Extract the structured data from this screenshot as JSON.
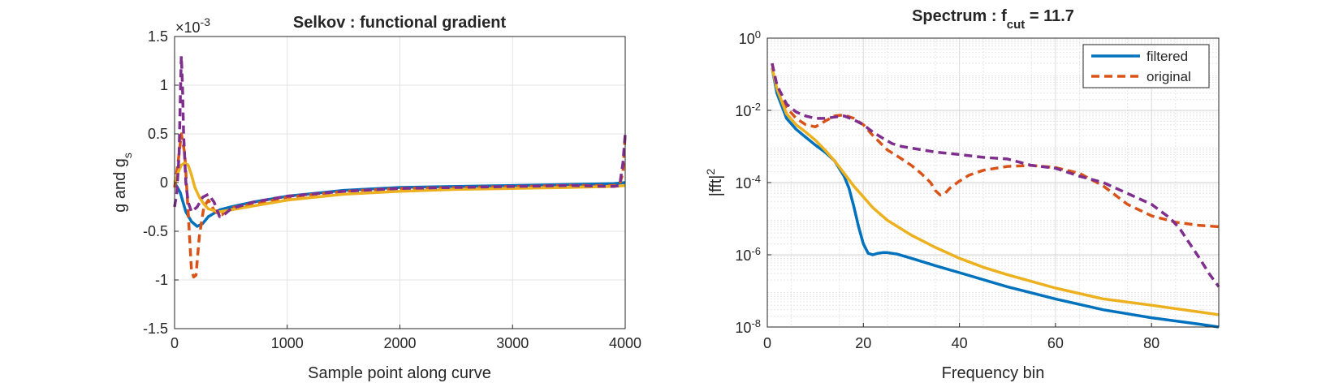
{
  "chart_data": [
    {
      "type": "line",
      "title": "Selkov : functional gradient",
      "xlabel": "Sample point along curve",
      "ylabel_main": "g and g",
      "ylabel_sub": "s",
      "exponent_base": "×10",
      "exponent_power": "-3",
      "xlim": [
        0,
        4000
      ],
      "ylim": [
        -1.5,
        1.5
      ],
      "xticks": [
        "0",
        "1000",
        "2000",
        "3000",
        "4000"
      ],
      "yticks": [
        "-1.5",
        "-1",
        "-0.5",
        "0",
        "0.5",
        "1",
        "1.5"
      ],
      "grid": true,
      "series": [
        {
          "color": "#0072BD",
          "style": "solid",
          "x": [
            0,
            50,
            100,
            150,
            200,
            250,
            300,
            400,
            500,
            700,
            1000,
            1500,
            2000,
            2500,
            3000,
            3500,
            3900,
            4000
          ],
          "y": [
            0,
            -0.1,
            -0.3,
            -0.4,
            -0.45,
            -0.42,
            -0.35,
            -0.28,
            -0.25,
            -0.2,
            -0.14,
            -0.08,
            -0.05,
            -0.04,
            -0.03,
            -0.02,
            -0.01,
            0
          ]
        },
        {
          "color": "#D95319",
          "style": "dashed",
          "x": [
            0,
            30,
            60,
            90,
            120,
            150,
            170,
            190,
            220,
            260,
            300,
            360,
            420,
            500,
            700,
            1000,
            1500,
            2000,
            2500,
            3000,
            3500,
            3900,
            3950,
            3980,
            4000
          ],
          "y": [
            -0.05,
            0.2,
            0.5,
            0.3,
            -0.3,
            -0.9,
            -0.97,
            -0.95,
            -0.55,
            -0.25,
            -0.18,
            -0.3,
            -0.33,
            -0.26,
            -0.22,
            -0.15,
            -0.09,
            -0.06,
            -0.05,
            -0.04,
            -0.03,
            -0.03,
            -0.02,
            0.1,
            0.5
          ]
        },
        {
          "color": "#EDB120",
          "style": "solid",
          "x": [
            0,
            30,
            60,
            90,
            120,
            150,
            180,
            220,
            260,
            300,
            400,
            500,
            700,
            1000,
            1500,
            2000,
            2500,
            3000,
            3500,
            3900,
            4000
          ],
          "y": [
            0,
            0.1,
            0.18,
            0.2,
            0.18,
            0.08,
            -0.05,
            -0.15,
            -0.22,
            -0.27,
            -0.3,
            -0.28,
            -0.24,
            -0.18,
            -0.12,
            -0.09,
            -0.07,
            -0.06,
            -0.05,
            -0.04,
            -0.03
          ]
        },
        {
          "color": "#7E2F8E",
          "style": "dashed",
          "x": [
            0,
            20,
            40,
            50,
            60,
            70,
            80,
            100,
            120,
            150,
            200,
            250,
            300,
            350,
            400,
            450,
            500,
            700,
            1000,
            1500,
            2000,
            2500,
            3000,
            3500,
            3900,
            3950,
            3980,
            4000
          ],
          "y": [
            -0.25,
            -0.1,
            0.3,
            0.8,
            1.3,
            1.0,
            0.5,
            0.0,
            -0.2,
            -0.3,
            -0.25,
            -0.15,
            -0.12,
            -0.2,
            -0.35,
            -0.32,
            -0.27,
            -0.2,
            -0.14,
            -0.09,
            -0.06,
            -0.05,
            -0.04,
            -0.03,
            -0.04,
            -0.03,
            0.2,
            0.5
          ]
        }
      ]
    },
    {
      "type": "line",
      "title_main": "Spectrum : f",
      "title_sub": "cut",
      "title_tail": " = 11.7",
      "xlabel": "Frequency bin",
      "ylabel_main": "|fft|",
      "ylabel_sup": "2",
      "xlim": [
        0,
        94
      ],
      "ylim": [
        1e-08,
        1
      ],
      "yscale": "log",
      "xticks": [
        "0",
        "20",
        "40",
        "60",
        "80"
      ],
      "ytick_base": "10",
      "ytick_exponents": [
        "0",
        "-2",
        "-4",
        "-6",
        "-8"
      ],
      "grid": true,
      "legend_location": "top-right",
      "legend": [
        "filtered",
        "original"
      ],
      "series": [
        {
          "name": "filtered",
          "color": "#0072BD",
          "style": "solid",
          "x": [
            1,
            2,
            4,
            6,
            8,
            10,
            12,
            14,
            16,
            17,
            18,
            19,
            20,
            21,
            22,
            23,
            24,
            25,
            27,
            30,
            35,
            40,
            50,
            60,
            70,
            80,
            90,
            94
          ],
          "y": [
            0.15,
            0.03,
            0.006,
            0.003,
            0.0018,
            0.0011,
            0.0007,
            0.0004,
            0.00015,
            7e-05,
            2.2e-05,
            6e-06,
            2e-06,
            1.1e-06,
            1e-06,
            1.1e-06,
            1.15e-06,
            1.15e-06,
            1.05e-06,
            8e-07,
            5e-07,
            3.2e-07,
            1.3e-07,
            6e-08,
            3e-08,
            1.8e-08,
            1.2e-08,
            1e-08
          ]
        },
        {
          "name": "original",
          "color": "#D95319",
          "style": "dashed",
          "x": [
            1,
            2,
            4,
            6,
            8,
            10,
            12,
            14,
            16,
            18,
            20,
            22,
            25,
            28,
            30,
            32,
            34,
            35,
            36,
            37,
            38,
            40,
            42,
            45,
            50,
            55,
            60,
            65,
            70,
            75,
            80,
            85,
            90,
            94
          ],
          "y": [
            0.2,
            0.05,
            0.012,
            0.006,
            0.004,
            0.0035,
            0.005,
            0.007,
            0.0075,
            0.006,
            0.004,
            0.002,
            0.0008,
            0.00045,
            0.0003,
            0.00018,
            0.0001,
            6e-05,
            4.5e-05,
            5e-05,
            7e-05,
            0.00011,
            0.00016,
            0.00022,
            0.00028,
            0.0003,
            0.00026,
            0.00018,
            8e-05,
            2.5e-05,
            1.2e-05,
            8e-06,
            6.5e-06,
            6e-06
          ]
        },
        {
          "color": "#EDB120",
          "style": "solid",
          "x": [
            1,
            2,
            4,
            6,
            8,
            10,
            12,
            14,
            16,
            18,
            20,
            22,
            25,
            30,
            35,
            40,
            45,
            50,
            60,
            70,
            80,
            90,
            94
          ],
          "y": [
            0.15,
            0.04,
            0.008,
            0.004,
            0.0025,
            0.0015,
            0.0008,
            0.0004,
            0.00018,
            8e-05,
            4e-05,
            2e-05,
            9e-06,
            3.5e-06,
            1.6e-06,
            8e-07,
            4.5e-07,
            2.8e-07,
            1.2e-07,
            6e-08,
            4e-08,
            2.6e-08,
            2.2e-08
          ]
        },
        {
          "color": "#7E2F8E",
          "style": "dashed",
          "x": [
            1,
            2,
            4,
            6,
            8,
            10,
            12,
            14,
            16,
            18,
            20,
            22,
            24,
            26,
            28,
            30,
            35,
            40,
            45,
            50,
            55,
            60,
            65,
            70,
            75,
            80,
            84,
            86,
            88,
            90,
            92,
            94
          ],
          "y": [
            0.2,
            0.05,
            0.015,
            0.009,
            0.007,
            0.006,
            0.006,
            0.0065,
            0.007,
            0.0055,
            0.004,
            0.0025,
            0.0017,
            0.0012,
            0.001,
            0.0009,
            0.0007,
            0.0006,
            0.0005,
            0.00045,
            0.0003,
            0.00025,
            0.00015,
            0.0001,
            5e-05,
            2.5e-05,
            1e-05,
            5e-06,
            2e-06,
            8e-07,
            3e-07,
            1.3e-07
          ]
        }
      ]
    }
  ]
}
